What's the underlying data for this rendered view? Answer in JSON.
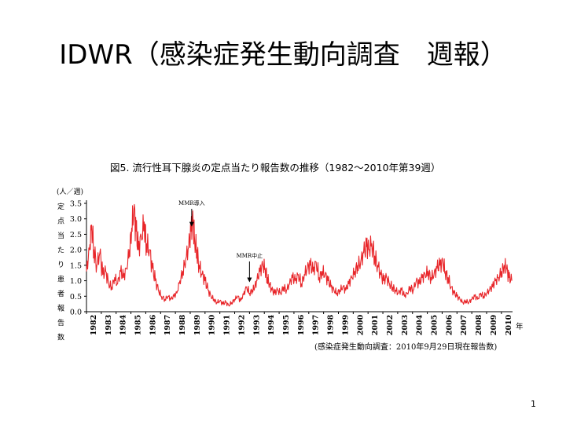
{
  "slide": {
    "title": "IDWR（感染症発生動向調査　週報）",
    "page_number": "1"
  },
  "chart_data": {
    "type": "line",
    "title": "図5. 流行性耳下腺炎の定点当たり報告数の推移（1982～2010年第39週）",
    "ylabel_top": "(人／週)",
    "ylabel": "定点当たり患者報告数",
    "xlabel_unit": "年",
    "ylim": [
      0,
      3.5
    ],
    "yticks": [
      "0.0",
      "0.5",
      "1.0",
      "1.5",
      "2.0",
      "2.5",
      "3.0",
      "3.5"
    ],
    "xlim": [
      1982,
      2010.75
    ],
    "xticks": [
      "1982",
      "1983",
      "1984",
      "1985",
      "1986",
      "1987",
      "1988",
      "1989",
      "1990",
      "1991",
      "1992",
      "1993",
      "1994",
      "1995",
      "1996",
      "1997",
      "1998",
      "1999",
      "2000",
      "2001",
      "2002",
      "2003",
      "2004",
      "2005",
      "2006",
      "2007",
      "2008",
      "2009",
      "2010"
    ],
    "series": [
      {
        "color": "#e8262a",
        "points": [
          [
            1982.0,
            1.3
          ],
          [
            1982.2,
            2.0
          ],
          [
            1982.35,
            2.8
          ],
          [
            1982.5,
            2.0
          ],
          [
            1982.7,
            1.5
          ],
          [
            1982.9,
            1.9
          ],
          [
            1983.1,
            1.2
          ],
          [
            1983.3,
            1.3
          ],
          [
            1983.5,
            0.9
          ],
          [
            1983.7,
            0.8
          ],
          [
            1983.9,
            1.1
          ],
          [
            1984.1,
            0.9
          ],
          [
            1984.3,
            1.3
          ],
          [
            1984.5,
            1.1
          ],
          [
            1984.7,
            1.4
          ],
          [
            1984.9,
            2.0
          ],
          [
            1985.05,
            2.7
          ],
          [
            1985.2,
            3.3
          ],
          [
            1985.35,
            2.6
          ],
          [
            1985.5,
            2.0
          ],
          [
            1985.7,
            2.4
          ],
          [
            1985.9,
            2.9
          ],
          [
            1986.05,
            2.2
          ],
          [
            1986.25,
            2.0
          ],
          [
            1986.45,
            1.4
          ],
          [
            1986.65,
            1.0
          ],
          [
            1986.85,
            0.7
          ],
          [
            1987.05,
            0.5
          ],
          [
            1987.3,
            0.4
          ],
          [
            1987.5,
            0.5
          ],
          [
            1987.7,
            0.4
          ],
          [
            1987.9,
            0.5
          ],
          [
            1988.1,
            0.6
          ],
          [
            1988.3,
            1.0
          ],
          [
            1988.5,
            1.3
          ],
          [
            1988.7,
            1.7
          ],
          [
            1988.9,
            2.1
          ],
          [
            1989.05,
            2.6
          ],
          [
            1989.2,
            2.9
          ],
          [
            1989.3,
            2.3
          ],
          [
            1989.45,
            2.0
          ],
          [
            1989.6,
            1.5
          ],
          [
            1989.8,
            1.2
          ],
          [
            1990.0,
            1.0
          ],
          [
            1990.2,
            0.7
          ],
          [
            1990.4,
            0.5
          ],
          [
            1990.6,
            0.4
          ],
          [
            1990.8,
            0.3
          ],
          [
            1991.0,
            0.35
          ],
          [
            1991.2,
            0.25
          ],
          [
            1991.4,
            0.3
          ],
          [
            1991.6,
            0.2
          ],
          [
            1991.8,
            0.3
          ],
          [
            1992.0,
            0.4
          ],
          [
            1992.2,
            0.5
          ],
          [
            1992.4,
            0.35
          ],
          [
            1992.6,
            0.55
          ],
          [
            1992.8,
            0.8
          ],
          [
            1993.0,
            0.6
          ],
          [
            1993.2,
            0.7
          ],
          [
            1993.35,
            0.8
          ],
          [
            1993.5,
            1.0
          ],
          [
            1993.7,
            1.3
          ],
          [
            1993.9,
            1.5
          ],
          [
            1994.05,
            1.4
          ],
          [
            1994.2,
            1.1
          ],
          [
            1994.35,
            0.9
          ],
          [
            1994.5,
            0.7
          ],
          [
            1994.7,
            0.6
          ],
          [
            1994.9,
            0.7
          ],
          [
            1995.1,
            0.6
          ],
          [
            1995.3,
            0.8
          ],
          [
            1995.5,
            0.7
          ],
          [
            1995.7,
            0.9
          ],
          [
            1995.9,
            1.1
          ],
          [
            1996.1,
            1.0
          ],
          [
            1996.3,
            1.2
          ],
          [
            1996.5,
            0.9
          ],
          [
            1996.7,
            1.2
          ],
          [
            1996.9,
            1.4
          ],
          [
            1997.1,
            1.5
          ],
          [
            1997.3,
            1.3
          ],
          [
            1997.5,
            1.6
          ],
          [
            1997.7,
            1.1
          ],
          [
            1997.9,
            1.3
          ],
          [
            1998.1,
            1.2
          ],
          [
            1998.3,
            1.0
          ],
          [
            1998.5,
            0.8
          ],
          [
            1998.7,
            0.7
          ],
          [
            1998.9,
            0.6
          ],
          [
            1999.1,
            0.7
          ],
          [
            1999.3,
            0.8
          ],
          [
            1999.5,
            0.7
          ],
          [
            1999.7,
            0.9
          ],
          [
            1999.9,
            1.1
          ],
          [
            2000.1,
            1.3
          ],
          [
            2000.3,
            1.5
          ],
          [
            2000.5,
            1.6
          ],
          [
            2000.7,
            1.9
          ],
          [
            2000.9,
            2.1
          ],
          [
            2001.05,
            2.0
          ],
          [
            2001.25,
            2.2
          ],
          [
            2001.45,
            1.8
          ],
          [
            2001.65,
            1.5
          ],
          [
            2001.85,
            1.2
          ],
          [
            2002.05,
            1.0
          ],
          [
            2002.25,
            1.1
          ],
          [
            2002.45,
            0.9
          ],
          [
            2002.65,
            0.8
          ],
          [
            2002.85,
            0.7
          ],
          [
            2003.05,
            0.6
          ],
          [
            2003.25,
            0.7
          ],
          [
            2003.45,
            0.5
          ],
          [
            2003.65,
            0.6
          ],
          [
            2003.85,
            0.8
          ],
          [
            2004.05,
            0.7
          ],
          [
            2004.25,
            1.0
          ],
          [
            2004.45,
            0.9
          ],
          [
            2004.65,
            1.1
          ],
          [
            2004.85,
            1.2
          ],
          [
            2005.05,
            1.3
          ],
          [
            2005.25,
            1.1
          ],
          [
            2005.45,
            1.2
          ],
          [
            2005.65,
            1.4
          ],
          [
            2005.85,
            1.5
          ],
          [
            2006.05,
            1.6
          ],
          [
            2006.2,
            1.3
          ],
          [
            2006.4,
            1.1
          ],
          [
            2006.6,
            0.8
          ],
          [
            2006.8,
            0.6
          ],
          [
            2007.0,
            0.5
          ],
          [
            2007.2,
            0.4
          ],
          [
            2007.4,
            0.3
          ],
          [
            2007.6,
            0.35
          ],
          [
            2007.8,
            0.3
          ],
          [
            2008.0,
            0.4
          ],
          [
            2008.2,
            0.5
          ],
          [
            2008.4,
            0.4
          ],
          [
            2008.6,
            0.6
          ],
          [
            2008.8,
            0.5
          ],
          [
            2009.0,
            0.6
          ],
          [
            2009.2,
            0.7
          ],
          [
            2009.4,
            0.8
          ],
          [
            2009.6,
            1.0
          ],
          [
            2009.8,
            1.1
          ],
          [
            2010.0,
            1.3
          ],
          [
            2010.2,
            1.5
          ],
          [
            2010.35,
            1.4
          ],
          [
            2010.5,
            1.1
          ],
          [
            2010.7,
            1.0
          ]
        ]
      }
    ],
    "annotations": [
      {
        "text": "MMR導入",
        "x": 1989.1,
        "y": 3.4,
        "arrow_to": 2.75
      },
      {
        "text": "MMR中止",
        "x": 1993.0,
        "y": 1.7,
        "arrow_to": 0.95
      }
    ],
    "source": "(感染症発生動向調査：2010年9月29日現在報告数)",
    "grid": false
  }
}
